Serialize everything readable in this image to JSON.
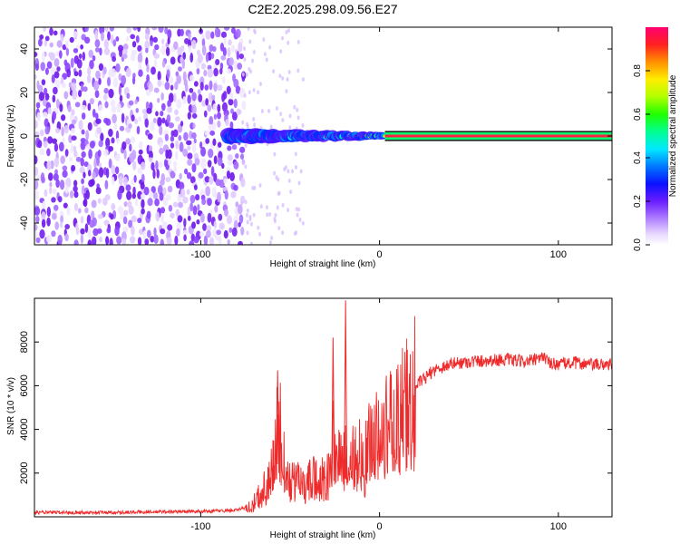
{
  "title": "C2E2.2025.298.09.56.E27",
  "chart_data": [
    {
      "type": "heatmap",
      "xlabel": "Height of straight line (km)",
      "ylabel": "Frequency (Hz)",
      "xlim": [
        -193,
        130
      ],
      "ylim": [
        -50,
        50
      ],
      "xticks": [
        -100,
        0,
        100
      ],
      "xtick_labels": [
        "-100",
        "0",
        "100"
      ],
      "yticks": [
        -40,
        -20,
        0,
        20,
        40
      ],
      "ytick_labels": [
        "-40",
        "-20",
        "0",
        "20",
        "40"
      ],
      "grid": false,
      "noise_region_km": [
        -193,
        -78
      ],
      "signal_band_hz": [
        -1.5,
        1.5
      ],
      "colorbar": {
        "label": "Normalized spectral amplitude",
        "range": [
          0,
          1
        ],
        "ticks": [
          0,
          0.2,
          0.4,
          0.6,
          0.8
        ],
        "tick_labels": [
          "0.0",
          "0.2",
          "0.4",
          "0.6",
          "0.8"
        ],
        "colors": [
          "#ffffff",
          "#c8a8ff",
          "#8a3cff",
          "#3a00ff",
          "#0040ff",
          "#00c8ff",
          "#00ff70",
          "#60ff00",
          "#ffff00",
          "#ffa000",
          "#ff2020",
          "#ff0080"
        ]
      }
    },
    {
      "type": "line",
      "xlabel": "Height of straight line (km)",
      "ylabel": "SNR (10 * v/v)",
      "xlim": [
        -193,
        130
      ],
      "ylim": [
        0,
        10000
      ],
      "xticks": [
        -100,
        0,
        100
      ],
      "xtick_labels": [
        "-100",
        "0",
        "100"
      ],
      "yticks": [
        2000,
        4000,
        6000,
        8000
      ],
      "ytick_labels": [
        "2000",
        "4000",
        "6000",
        "8000"
      ],
      "grid": false,
      "series": [
        {
          "name": "SNR",
          "color": "#ee2a2a",
          "x": [
            -193,
            -150,
            -100,
            -80,
            -72,
            -68,
            -64,
            -60,
            -58,
            -56,
            -54,
            -52,
            -50,
            -48,
            -45,
            -42,
            -40,
            -36,
            -33,
            -30,
            -28,
            -26,
            -24,
            -22,
            -20,
            -18,
            -16,
            -14,
            -12,
            -10,
            -8,
            -6,
            -4,
            -2,
            0,
            5,
            10,
            15,
            20,
            25,
            30,
            40,
            50,
            60,
            70,
            80,
            90,
            92,
            95,
            100,
            110,
            120,
            130
          ],
          "y": [
            200,
            200,
            250,
            300,
            500,
            900,
            1500,
            2200,
            3500,
            4500,
            3000,
            2000,
            1800,
            1600,
            1900,
            1500,
            1600,
            2000,
            1800,
            1900,
            2500,
            3500,
            2800,
            2500,
            3000,
            3100,
            3600,
            3400,
            2800,
            3100,
            2800,
            3400,
            3600,
            3700,
            4000,
            4300,
            4600,
            5300,
            6000,
            6300,
            6700,
            7000,
            7100,
            7150,
            7200,
            7100,
            7200,
            7400,
            7000,
            7000,
            7050,
            6950,
            7000
          ]
        }
      ],
      "spikes": [
        {
          "x": -57,
          "y": 6700
        },
        {
          "x": -26,
          "y": 8200
        },
        {
          "x": -19,
          "y": 9900
        }
      ]
    }
  ]
}
